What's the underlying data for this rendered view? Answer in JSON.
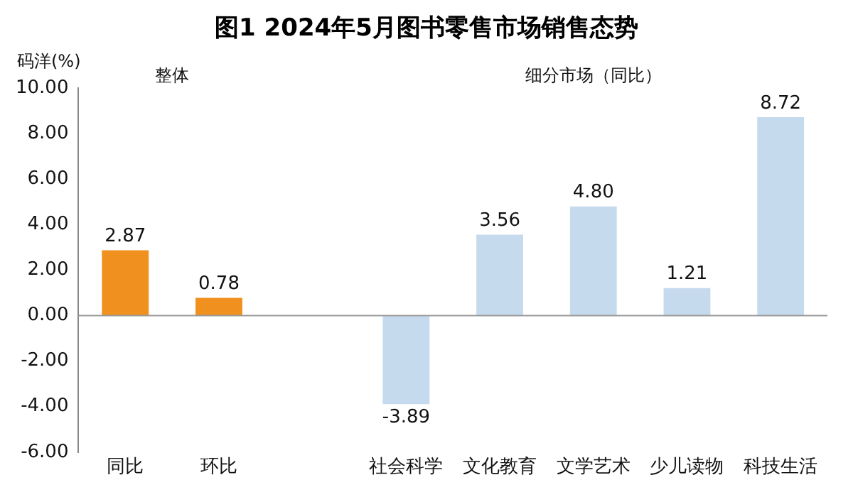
{
  "chart_data": {
    "type": "bar",
    "title": "图1  2024年5月图书零售市场销售态势",
    "ylabel": "码洋(%)",
    "categories": [
      "同比",
      "环比",
      null,
      "社会科学",
      "文化教育",
      "文学艺术",
      "少儿读物",
      "科技生活"
    ],
    "values": [
      2.87,
      0.78,
      null,
      -3.89,
      3.56,
      4.8,
      1.21,
      8.72
    ],
    "colors": [
      "#f0901e",
      "#f0901e",
      "#c6daee",
      "#c6daee",
      "#c6daee",
      "#c6daee",
      "#c6daee",
      "#c6daee"
    ],
    "value_labels": [
      "2.87",
      "0.78",
      null,
      "-3.89",
      "3.56",
      "4.80",
      "1.21",
      "8.72"
    ],
    "annotations": [
      "整体",
      "细分市场（同比）"
    ],
    "ylim": [
      -6,
      10
    ],
    "yticks": [
      {
        "value": -6,
        "label": "-6.00"
      },
      {
        "value": -4,
        "label": "-4.00"
      },
      {
        "value": -2,
        "label": "-2.00"
      },
      {
        "value": 0,
        "label": "0.00"
      },
      {
        "value": 2,
        "label": "2.00"
      },
      {
        "value": 4,
        "label": "4.00"
      },
      {
        "value": 6,
        "label": "6.00"
      },
      {
        "value": 8,
        "label": "8.00"
      },
      {
        "value": 10,
        "label": "10.00"
      }
    ],
    "ref_lines": [
      {
        "axis": "y",
        "value": 0,
        "color": "#9a9a9a"
      }
    ],
    "grid": false,
    "legend": false
  }
}
